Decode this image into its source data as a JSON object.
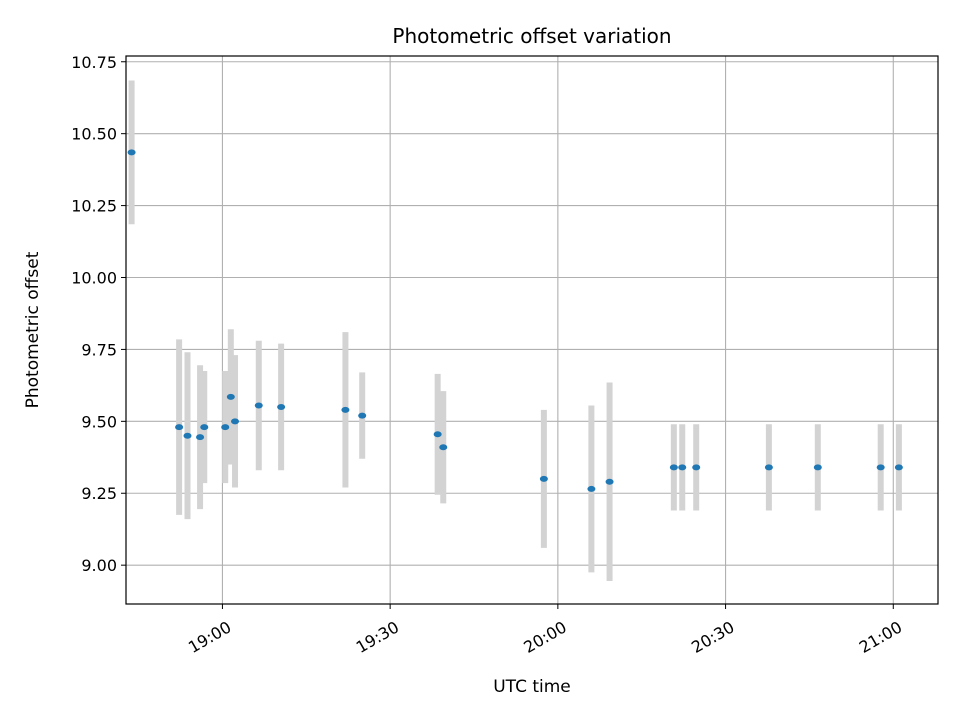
{
  "chart_data": {
    "type": "scatter",
    "title": "Photometric offset variation",
    "xlabel": "UTC time",
    "ylabel": "Photometric offset",
    "grid": true,
    "legend": "none",
    "x_ticks": [
      "19:00",
      "19:30",
      "20:00",
      "20:30",
      "21:00"
    ],
    "y_ticks": [
      "9.00",
      "9.25",
      "9.50",
      "9.75",
      "10.00",
      "10.25",
      "10.50",
      "10.75"
    ],
    "xlim": [
      "18:42:45",
      "21:08:00"
    ],
    "ylim": [
      8.865,
      10.77
    ],
    "colors": {
      "point": "#1f77b4",
      "errorbar": "#d3d3d3",
      "grid": "#b0b0b0"
    },
    "points": [
      {
        "x": "18:43:45",
        "y": 10.435,
        "yerr": 0.25
      },
      {
        "x": "18:52:15",
        "y": 9.48,
        "yerr": 0.305
      },
      {
        "x": "18:53:45",
        "y": 9.45,
        "yerr": 0.29
      },
      {
        "x": "18:56:00",
        "y": 9.445,
        "yerr": 0.25
      },
      {
        "x": "18:56:45",
        "y": 9.48,
        "yerr": 0.195
      },
      {
        "x": "19:00:30",
        "y": 9.48,
        "yerr": 0.195
      },
      {
        "x": "19:01:30",
        "y": 9.585,
        "yerr": 0.235
      },
      {
        "x": "19:02:15",
        "y": 9.5,
        "yerr": 0.23
      },
      {
        "x": "19:06:30",
        "y": 9.555,
        "yerr": 0.225
      },
      {
        "x": "19:10:30",
        "y": 9.55,
        "yerr": 0.22
      },
      {
        "x": "19:22:00",
        "y": 9.54,
        "yerr": 0.27
      },
      {
        "x": "19:25:00",
        "y": 9.52,
        "yerr": 0.15
      },
      {
        "x": "19:38:30",
        "y": 9.455,
        "yerr": 0.21
      },
      {
        "x": "19:39:30",
        "y": 9.41,
        "yerr": 0.195
      },
      {
        "x": "19:57:30",
        "y": 9.3,
        "yerr": 0.24
      },
      {
        "x": "20:06:00",
        "y": 9.265,
        "yerr": 0.29
      },
      {
        "x": "20:09:15",
        "y": 9.29,
        "yerr": 0.345
      },
      {
        "x": "20:20:45",
        "y": 9.34,
        "yerr": 0.15
      },
      {
        "x": "20:22:15",
        "y": 9.34,
        "yerr": 0.15
      },
      {
        "x": "20:24:45",
        "y": 9.34,
        "yerr": 0.15
      },
      {
        "x": "20:37:45",
        "y": 9.34,
        "yerr": 0.15
      },
      {
        "x": "20:46:30",
        "y": 9.34,
        "yerr": 0.15
      },
      {
        "x": "20:57:45",
        "y": 9.34,
        "yerr": 0.15
      },
      {
        "x": "21:01:00",
        "y": 9.34,
        "yerr": 0.15
      }
    ]
  }
}
